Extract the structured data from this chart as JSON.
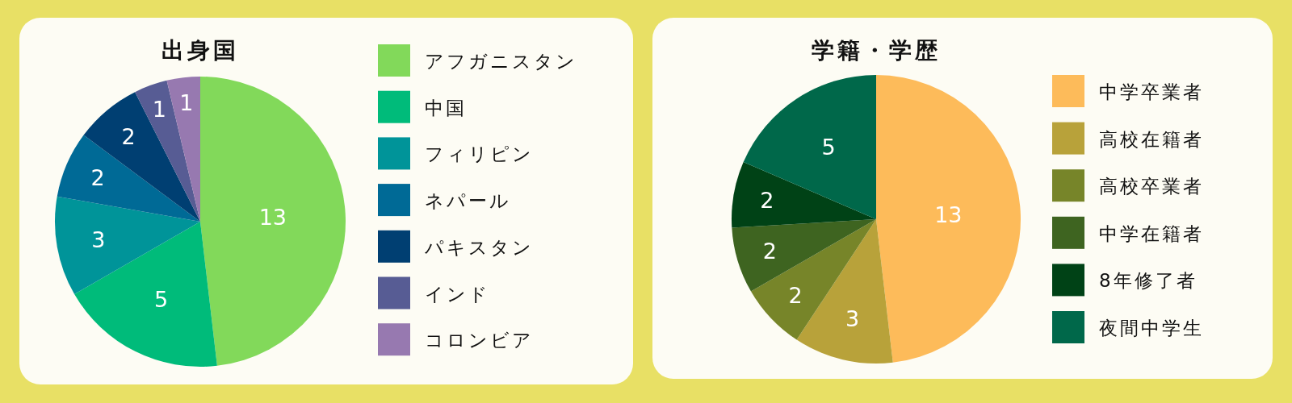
{
  "chart_data": [
    {
      "type": "pie",
      "title": "出身国",
      "categories": [
        "アフガニスタン",
        "中国",
        "フィリピン",
        "ネパール",
        "パキスタン",
        "インド",
        "コロンビア"
      ],
      "values": [
        13,
        5,
        3,
        2,
        2,
        1,
        1
      ],
      "colors": [
        "#82d95a",
        "#00bb7a",
        "#009499",
        "#006a96",
        "#003f72",
        "#575c94",
        "#9779b0"
      ],
      "data_labels": true,
      "legend": "right"
    },
    {
      "type": "pie",
      "title": "学籍・学歴",
      "categories": [
        "中学卒業者",
        "高校在籍者",
        "高校卒業者",
        "中学在籍者",
        "8年修了者",
        "夜間中学生"
      ],
      "values": [
        13,
        3,
        2,
        2,
        2,
        5
      ],
      "colors": [
        "#fdbb5a",
        "#b8a23a",
        "#778529",
        "#3e6420",
        "#004216",
        "#00684a"
      ],
      "data_labels": true,
      "legend": "right"
    }
  ]
}
